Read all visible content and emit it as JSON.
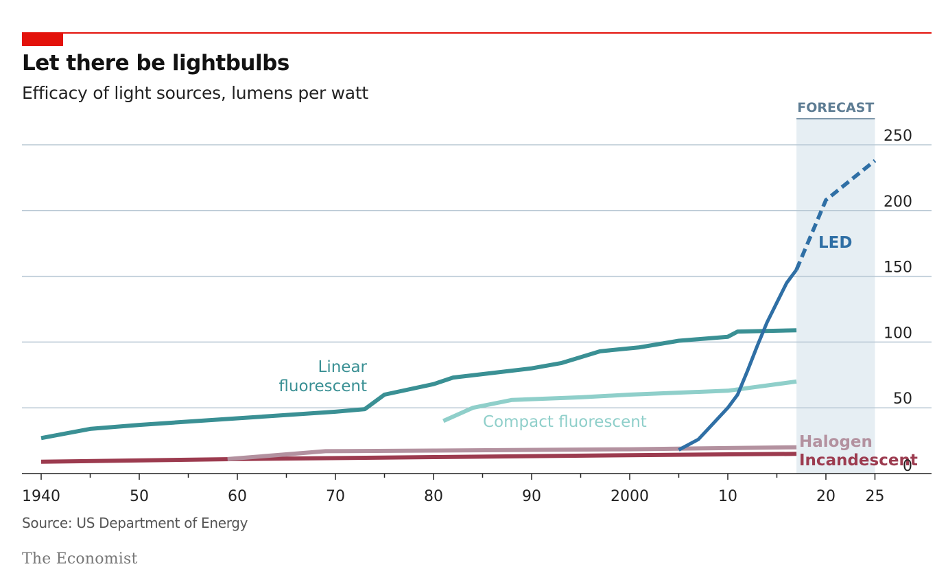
{
  "header": {
    "title": "Let there be lightbulbs",
    "subtitle": "Efficacy of light sources, lumens per watt"
  },
  "footer": {
    "source": "Source: US Department of Energy",
    "brand": "The Economist"
  },
  "colors": {
    "accent": "#e3120b",
    "linear": "#3a9094",
    "compact": "#8fcfca",
    "halogen": "#b3919f",
    "incandescent": "#9c3b4f",
    "led": "#2f6fa5",
    "forecast_band": "#e6eef3",
    "grid": "#b8c8d4"
  },
  "chart_data": {
    "type": "line",
    "title": "Let there be lightbulbs",
    "subtitle": "Efficacy of light sources, lumens per watt",
    "xlim": [
      1938,
      2028
    ],
    "ylim": [
      0,
      250
    ],
    "y_ticks": [
      0,
      50,
      100,
      150,
      200,
      250
    ],
    "x_ticks": [
      {
        "value": 1940,
        "label": "1940"
      },
      {
        "value": 1950,
        "label": "50"
      },
      {
        "value": 1960,
        "label": "60"
      },
      {
        "value": 1970,
        "label": "70"
      },
      {
        "value": 1980,
        "label": "80"
      },
      {
        "value": 1990,
        "label": "90"
      },
      {
        "value": 2000,
        "label": "2000"
      },
      {
        "value": 2010,
        "label": "10"
      },
      {
        "value": 2020,
        "label": "20"
      },
      {
        "value": 2025,
        "label": "25"
      }
    ],
    "forecast": {
      "label": "FORECAST",
      "start": 2017,
      "end": 2025
    },
    "grid": true,
    "series": [
      {
        "name": "Linear fluorescent",
        "label_lines": [
          "Linear",
          "fluorescent"
        ],
        "color": "#3a9094",
        "points": [
          [
            1940,
            27
          ],
          [
            1945,
            34
          ],
          [
            1950,
            37
          ],
          [
            1960,
            42
          ],
          [
            1970,
            47
          ],
          [
            1973,
            49
          ],
          [
            1975,
            60
          ],
          [
            1980,
            68
          ],
          [
            1982,
            73
          ],
          [
            1990,
            80
          ],
          [
            1993,
            84
          ],
          [
            1997,
            93
          ],
          [
            2001,
            96
          ],
          [
            2005,
            101
          ],
          [
            2010,
            104
          ],
          [
            2011,
            108
          ],
          [
            2017,
            109
          ]
        ]
      },
      {
        "name": "Compact fluorescent",
        "label_lines": [
          "Compact fluorescent"
        ],
        "color": "#8fcfca",
        "points": [
          [
            1981,
            40
          ],
          [
            1984,
            50
          ],
          [
            1988,
            56
          ],
          [
            1995,
            58
          ],
          [
            2000,
            60
          ],
          [
            2010,
            63
          ],
          [
            2017,
            70
          ]
        ]
      },
      {
        "name": "Halogen",
        "label_lines": [
          "Halogen"
        ],
        "color": "#b3919f",
        "points": [
          [
            1959,
            11
          ],
          [
            1969,
            17
          ],
          [
            1980,
            17.5
          ],
          [
            2000,
            18.5
          ],
          [
            2017,
            20
          ]
        ]
      },
      {
        "name": "Incandescent",
        "label_lines": [
          "Incandescent"
        ],
        "color": "#9c3b4f",
        "points": [
          [
            1940,
            9
          ],
          [
            1960,
            11
          ],
          [
            1980,
            12.5
          ],
          [
            2000,
            14
          ],
          [
            2017,
            15
          ]
        ]
      },
      {
        "name": "LED",
        "label_lines": [
          "LED"
        ],
        "color": "#2f6fa5",
        "points": [
          [
            2005,
            18
          ],
          [
            2007,
            26
          ],
          [
            2008,
            34
          ],
          [
            2010,
            50
          ],
          [
            2011,
            60
          ],
          [
            2012,
            78
          ],
          [
            2013,
            97
          ],
          [
            2014,
            115
          ],
          [
            2015,
            130
          ],
          [
            2016,
            145
          ],
          [
            2017,
            155
          ]
        ],
        "forecast_points": [
          [
            2017,
            155
          ],
          [
            2020,
            208
          ],
          [
            2025,
            238
          ]
        ]
      }
    ]
  }
}
